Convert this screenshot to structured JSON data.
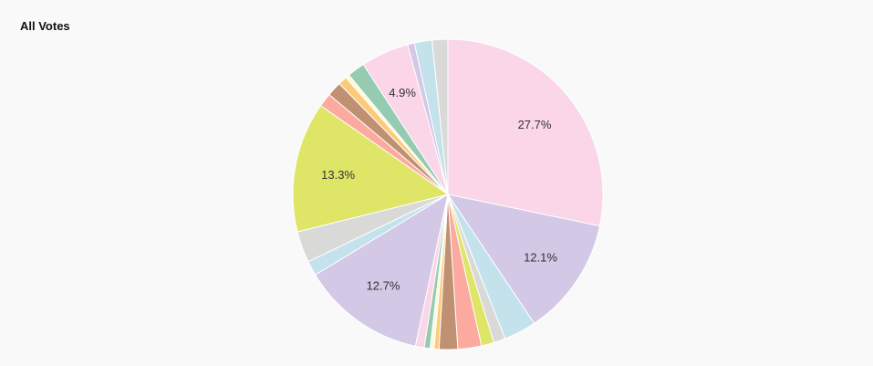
{
  "chart_data": {
    "type": "pie",
    "title": "All Votes",
    "slices": [
      {
        "value": 27.7,
        "color": "#fbd5e8",
        "label": "27.7%"
      },
      {
        "value": 12.1,
        "color": "#d3c8e5",
        "label": "12.1%"
      },
      {
        "value": 3.3,
        "color": "#c3e2ec",
        "label": ""
      },
      {
        "value": 1.2,
        "color": "#d9d9d7",
        "label": ""
      },
      {
        "value": 1.3,
        "color": "#dee567",
        "label": ""
      },
      {
        "value": 2.4,
        "color": "#fca99f",
        "label": ""
      },
      {
        "value": 1.9,
        "color": "#bf9172",
        "label": ""
      },
      {
        "value": 0.5,
        "color": "#fdca7a",
        "label": ""
      },
      {
        "value": 0.4,
        "color": "#fbf9da",
        "label": ""
      },
      {
        "value": 0.6,
        "color": "#95cbb1",
        "label": ""
      },
      {
        "value": 0.9,
        "color": "#fbd5e8",
        "label": ""
      },
      {
        "value": 12.7,
        "color": "#d3c8e5",
        "label": "12.7%"
      },
      {
        "value": 1.5,
        "color": "#c3e2ec",
        "label": ""
      },
      {
        "value": 3.2,
        "color": "#d9d9d7",
        "label": ""
      },
      {
        "value": 13.3,
        "color": "#dee567",
        "label": "13.3%"
      },
      {
        "value": 1.4,
        "color": "#fca99f",
        "label": ""
      },
      {
        "value": 1.5,
        "color": "#bf9172",
        "label": ""
      },
      {
        "value": 0.9,
        "color": "#fdca7a",
        "label": ""
      },
      {
        "value": 0.4,
        "color": "#fbf9da",
        "label": ""
      },
      {
        "value": 1.8,
        "color": "#95cbb1",
        "label": ""
      },
      {
        "value": 4.9,
        "color": "#fbd5e8",
        "label": "4.9%"
      },
      {
        "value": 0.7,
        "color": "#d3c8e5",
        "label": ""
      },
      {
        "value": 1.8,
        "color": "#c3e2ec",
        "label": ""
      },
      {
        "value": 1.6,
        "color": "#d9d9d7",
        "label": ""
      }
    ]
  }
}
